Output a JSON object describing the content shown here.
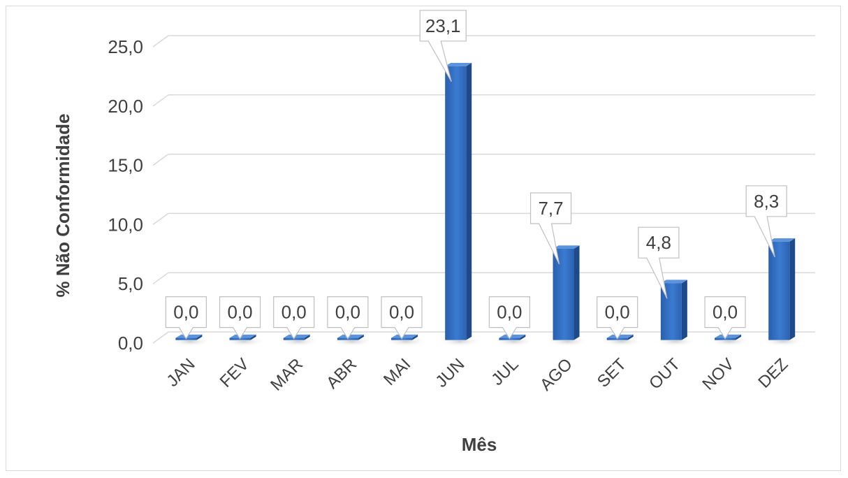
{
  "chart_data": {
    "type": "bar",
    "title": "",
    "xlabel": "Mês",
    "ylabel": "% Não Conformidade",
    "categories": [
      "JAN",
      "FEV",
      "MAR",
      "ABR",
      "MAI",
      "JUN",
      "JUL",
      "AGO",
      "SET",
      "OUT",
      "NOV",
      "DEZ"
    ],
    "series": [
      {
        "values": [
          0.0,
          0.0,
          0.0,
          0.0,
          0.0,
          23.1,
          0.0,
          7.7,
          0.0,
          4.8,
          0.0,
          8.3
        ],
        "data_labels": [
          "0,0",
          "0,0",
          "0,0",
          "0,0",
          "0,0",
          "23,1",
          "0,0",
          "7,7",
          "0,0",
          "4,8",
          "0,0",
          "8,3"
        ],
        "color": "#2e67b8"
      }
    ],
    "y_ticks": [
      "0,0",
      "5,0",
      "10,0",
      "15,0",
      "20,0",
      "25,0"
    ],
    "y_tick_values": [
      0,
      5,
      10,
      15,
      20,
      25
    ],
    "ylim": [
      0,
      25
    ],
    "grid": true,
    "legend": "none",
    "style": "3d-column-with-callout-labels"
  }
}
